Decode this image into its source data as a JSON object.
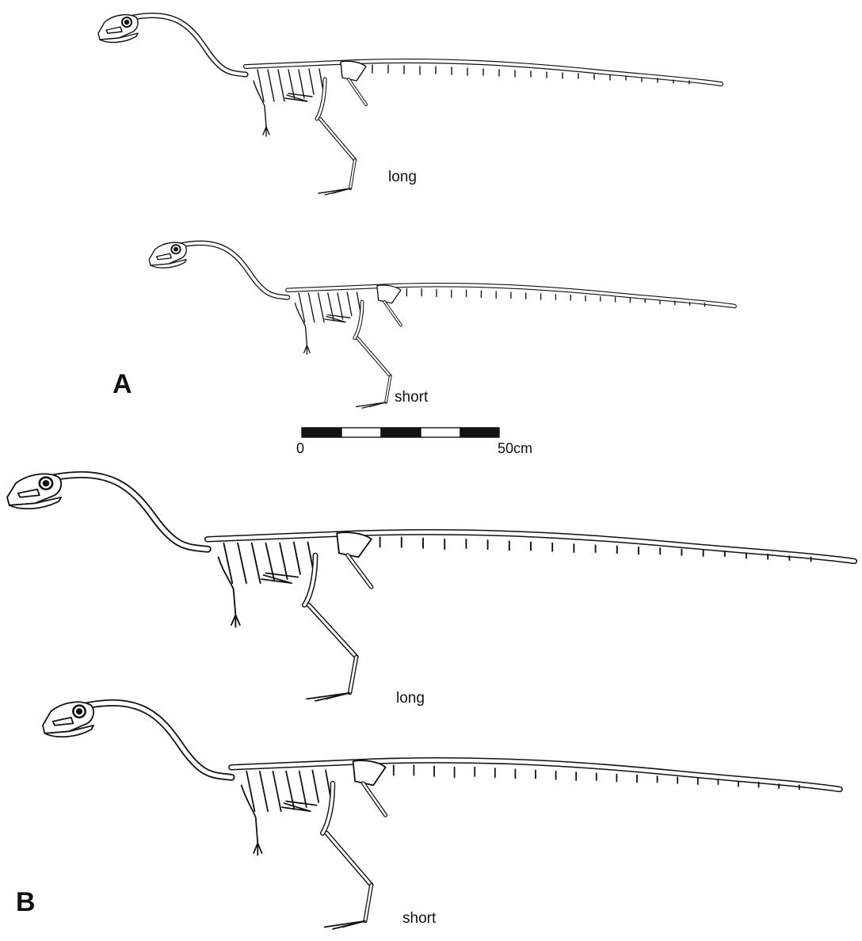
{
  "panels": [
    {
      "letter": "A",
      "skeletons": [
        {
          "label": "long"
        },
        {
          "label": "short"
        }
      ]
    },
    {
      "letter": "B",
      "skeletons": [
        {
          "label": "long"
        },
        {
          "label": "short"
        }
      ]
    }
  ],
  "scale_bar": {
    "start_label": "0",
    "end_label": "50cm",
    "segments": 5
  },
  "colors": {
    "ink": "#111111",
    "bone_fill": "#ffffff"
  }
}
